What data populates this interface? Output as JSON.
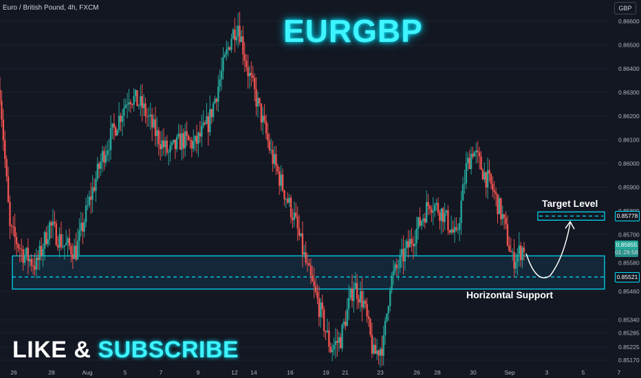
{
  "header": {
    "symbol_info": "Euro / British Pound, 4h, FXCM"
  },
  "overlay": {
    "title": "EURGBP",
    "cta_part1": "LIKE",
    "cta_amp": "&",
    "cta_part2": "SUBSCRIBE"
  },
  "currency_button": "GBP",
  "annotations": {
    "target": "Target Level",
    "support": "Horizontal Support"
  },
  "price_labels": {
    "target": "0.85778",
    "current": "0.85655",
    "countdown": "01:28:58",
    "support": "0.85521"
  },
  "colors": {
    "background": "#131722",
    "up": "#26a69a",
    "down": "#ef5350",
    "accent": "#00e5ff",
    "zone_fill": "#152a3c"
  },
  "chart_data": {
    "type": "candlestick",
    "symbol": "EURGBP",
    "timeframe": "4h",
    "source": "FXCM",
    "y_axis": {
      "ticks": [
        0.866,
        0.865,
        0.864,
        0.863,
        0.862,
        0.861,
        0.86,
        0.859,
        0.858,
        0.857,
        0.8558,
        0.8546,
        0.8534,
        0.85285,
        0.85225,
        0.8517
      ],
      "tick_labels": [
        "0.86600",
        "0.86500",
        "0.86400",
        "0.86300",
        "0.86200",
        "0.86100",
        "0.86000",
        "0.85900",
        "0.85800",
        "0.85700",
        "0.85580",
        "0.85460",
        "0.85340",
        "0.85285",
        "0.85225",
        "0.85170"
      ],
      "range": [
        0.8515,
        0.8668
      ]
    },
    "x_axis": {
      "labels": [
        "26",
        "28",
        "Aug",
        "5",
        "7",
        "9",
        "12",
        "14",
        "16",
        "19",
        "21",
        "23",
        "26",
        "28",
        "30",
        "Sep",
        "3",
        "5",
        "7"
      ]
    },
    "waypoints": [
      [
        0,
        0.8631
      ],
      [
        6,
        0.8572
      ],
      [
        14,
        0.8562
      ],
      [
        22,
        0.8557
      ],
      [
        30,
        0.8574
      ],
      [
        38,
        0.8566
      ],
      [
        46,
        0.8563
      ],
      [
        54,
        0.8584
      ],
      [
        62,
        0.8603
      ],
      [
        70,
        0.8616
      ],
      [
        78,
        0.8629
      ],
      [
        86,
        0.8624
      ],
      [
        94,
        0.8613
      ],
      [
        102,
        0.8604
      ],
      [
        110,
        0.861
      ],
      [
        118,
        0.8608
      ],
      [
        126,
        0.8617
      ],
      [
        134,
        0.8638
      ],
      [
        140,
        0.8654
      ],
      [
        144,
        0.8659
      ],
      [
        150,
        0.8639
      ],
      [
        158,
        0.862
      ],
      [
        164,
        0.8604
      ],
      [
        172,
        0.8588
      ],
      [
        178,
        0.8577
      ],
      [
        186,
        0.8555
      ],
      [
        192,
        0.8542
      ],
      [
        200,
        0.8522
      ],
      [
        206,
        0.8526
      ],
      [
        214,
        0.8549
      ],
      [
        220,
        0.8541
      ],
      [
        226,
        0.8519
      ],
      [
        232,
        0.8524
      ],
      [
        236,
        0.855
      ],
      [
        244,
        0.8561
      ],
      [
        252,
        0.8572
      ],
      [
        260,
        0.8584
      ],
      [
        268,
        0.8579
      ],
      [
        276,
        0.8568
      ],
      [
        282,
        0.8598
      ],
      [
        286,
        0.8606
      ],
      [
        292,
        0.8597
      ],
      [
        298,
        0.8589
      ],
      [
        304,
        0.8577
      ],
      [
        310,
        0.8559
      ],
      [
        317,
        0.8565
      ]
    ],
    "support_zone": {
      "low": 0.8547,
      "high": 0.8561,
      "level": 0.85521
    },
    "target_level": 0.85778,
    "current_price": 0.85655,
    "projection": "dip to support then rally to target"
  }
}
